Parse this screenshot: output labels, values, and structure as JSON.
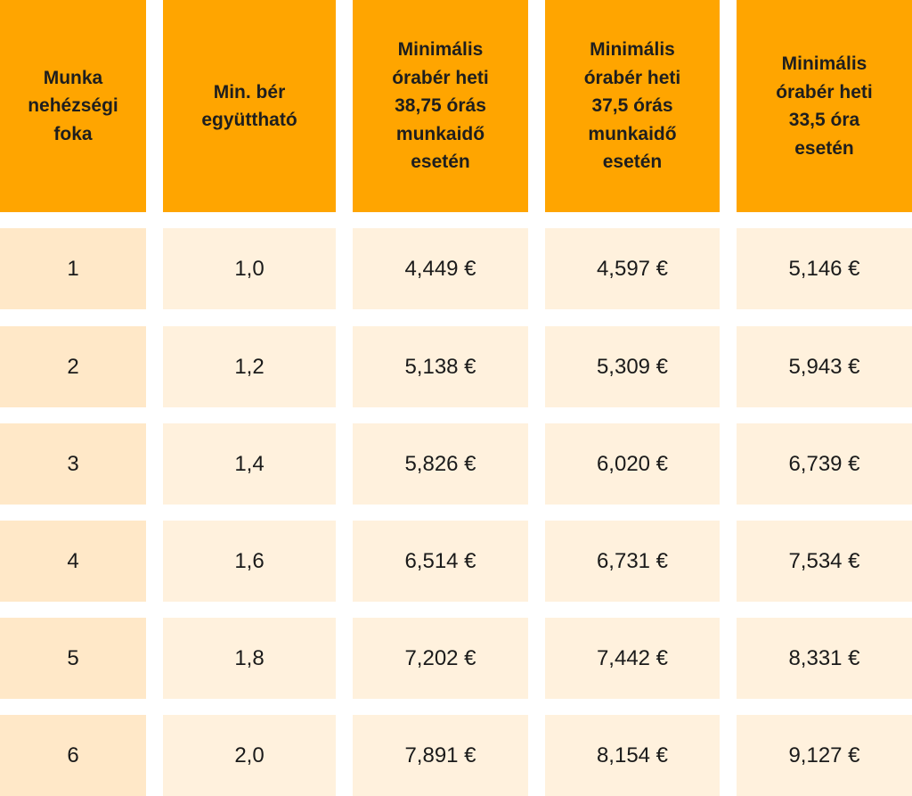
{
  "colors": {
    "header_bg": "#ffa500",
    "first_column_bg": "#ffe8c8",
    "cell_bg": "#fff1dd",
    "text": "#1a1a1a"
  },
  "table": {
    "headers": [
      "Munka\nnehézségi\nfoka",
      "Min. bér\negyüttható",
      "Minimális\nórabér heti\n38,75 órás\nmunkaidő\nesetén",
      "Minimális\nórabér heti\n37,5 órás\nmunkaidő\nesetén",
      "Minimális\nórabér heti\n33,5 óra\nesetén"
    ],
    "rows": [
      [
        "1",
        "1,0",
        "4,449 €",
        "4,597 €",
        "5,146 €"
      ],
      [
        "2",
        "1,2",
        "5,138 €",
        "5,309 €",
        "5,943 €"
      ],
      [
        "3",
        "1,4",
        "5,826 €",
        "6,020 €",
        "6,739 €"
      ],
      [
        "4",
        "1,6",
        "6,514 €",
        "6,731 €",
        "7,534 €"
      ],
      [
        "5",
        "1,8",
        "7,202 €",
        "7,442 €",
        "8,331 €"
      ],
      [
        "6",
        "2,0",
        "7,891 €",
        "8,154 €",
        "9,127 €"
      ]
    ]
  }
}
